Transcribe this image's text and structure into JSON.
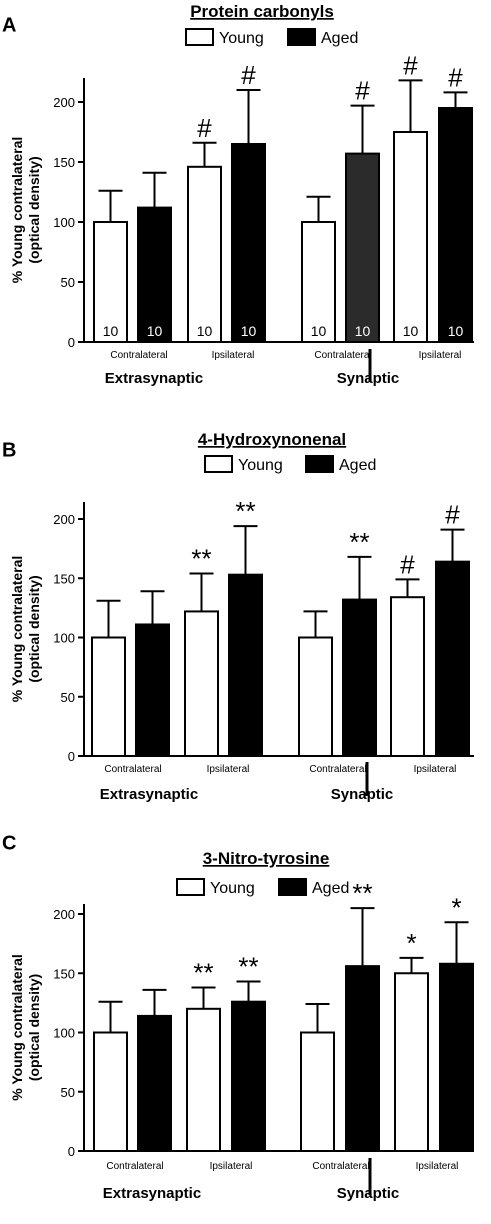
{
  "chart_data": [
    {
      "type": "bar",
      "panel": "A",
      "title": "Protein carbonyls",
      "ylabel": [
        "% Young contralateral",
        "(optical density)"
      ],
      "ylim": [
        0,
        230
      ],
      "yticks": [
        0,
        50,
        100,
        150,
        200
      ],
      "legend": [
        "Young",
        "Aged"
      ],
      "groups": [
        "Extrasynaptic",
        "Synaptic"
      ],
      "categories": [
        "Contralateral",
        "Ipsilateral"
      ],
      "bars": [
        {
          "group": "Extrasynaptic",
          "category": "Contralateral",
          "series": "Young",
          "value": 100,
          "error": 26,
          "sig": "",
          "n": "10"
        },
        {
          "group": "Extrasynaptic",
          "category": "Contralateral",
          "series": "Aged",
          "value": 112,
          "error": 29,
          "sig": "",
          "n": "10"
        },
        {
          "group": "Extrasynaptic",
          "category": "Ipsilateral",
          "series": "Young",
          "value": 146,
          "error": 20,
          "sig": "#",
          "n": "10"
        },
        {
          "group": "Extrasynaptic",
          "category": "Ipsilateral",
          "series": "Aged",
          "value": 165,
          "error": 45,
          "sig": "#",
          "n": "10"
        },
        {
          "group": "Synaptic",
          "category": "Contralateral",
          "series": "Young",
          "value": 100,
          "error": 21,
          "sig": "",
          "n": "10"
        },
        {
          "group": "Synaptic",
          "category": "Contralateral",
          "series": "Aged",
          "value": 157,
          "error": 40,
          "sig": "#",
          "n": "10",
          "color": "#2b2b2b"
        },
        {
          "group": "Synaptic",
          "category": "Ipsilateral",
          "series": "Young",
          "value": 175,
          "error": 43,
          "sig": "#",
          "n": "10"
        },
        {
          "group": "Synaptic",
          "category": "Ipsilateral",
          "series": "Aged",
          "value": 195,
          "error": 13,
          "sig": "#",
          "n": "10"
        }
      ]
    },
    {
      "type": "bar",
      "panel": "B",
      "title": "4-Hydroxynonenal",
      "ylabel": [
        "% Young contralateral",
        "(optical density)"
      ],
      "ylim": [
        0,
        230
      ],
      "yticks": [
        0,
        50,
        100,
        150,
        200
      ],
      "legend": [
        "Young",
        "Aged"
      ],
      "groups": [
        "Extrasynaptic",
        "Synaptic"
      ],
      "categories": [
        "Contralateral",
        "Ipsilateral"
      ],
      "bars": [
        {
          "group": "Extrasynaptic",
          "category": "Contralateral",
          "series": "Young",
          "value": 100,
          "error": 31,
          "sig": ""
        },
        {
          "group": "Extrasynaptic",
          "category": "Contralateral",
          "series": "Aged",
          "value": 111,
          "error": 28,
          "sig": ""
        },
        {
          "group": "Extrasynaptic",
          "category": "Ipsilateral",
          "series": "Young",
          "value": 122,
          "error": 32,
          "sig": "**"
        },
        {
          "group": "Extrasynaptic",
          "category": "Ipsilateral",
          "series": "Aged",
          "value": 153,
          "error": 41,
          "sig": "**"
        },
        {
          "group": "Synaptic",
          "category": "Contralateral",
          "series": "Young",
          "value": 100,
          "error": 22,
          "sig": ""
        },
        {
          "group": "Synaptic",
          "category": "Contralateral",
          "series": "Aged",
          "value": 132,
          "error": 36,
          "sig": "**"
        },
        {
          "group": "Synaptic",
          "category": "Ipsilateral",
          "series": "Young",
          "value": 134,
          "error": 15,
          "sig": "#"
        },
        {
          "group": "Synaptic",
          "category": "Ipsilateral",
          "series": "Aged",
          "value": 164,
          "error": 27,
          "sig": "#"
        }
      ]
    },
    {
      "type": "bar",
      "panel": "C",
      "title": "3-Nitro-tyrosine",
      "ylabel": [
        "% Young contralateral",
        "(optical density)"
      ],
      "ylim": [
        0,
        230
      ],
      "yticks": [
        0,
        50,
        100,
        150,
        200
      ],
      "legend": [
        "Young",
        "Aged"
      ],
      "groups": [
        "Extrasynaptic",
        "Synaptic"
      ],
      "categories": [
        "Contralateral",
        "Ipsilateral"
      ],
      "bars": [
        {
          "group": "Extrasynaptic",
          "category": "Contralateral",
          "series": "Young",
          "value": 100,
          "error": 26,
          "sig": ""
        },
        {
          "group": "Extrasynaptic",
          "category": "Contralateral",
          "series": "Aged",
          "value": 114,
          "error": 22,
          "sig": ""
        },
        {
          "group": "Extrasynaptic",
          "category": "Ipsilateral",
          "series": "Young",
          "value": 120,
          "error": 18,
          "sig": "**"
        },
        {
          "group": "Extrasynaptic",
          "category": "Ipsilateral",
          "series": "Aged",
          "value": 126,
          "error": 17,
          "sig": "**"
        },
        {
          "group": "Synaptic",
          "category": "Contralateral",
          "series": "Young",
          "value": 100,
          "error": 24,
          "sig": ""
        },
        {
          "group": "Synaptic",
          "category": "Contralateral",
          "series": "Aged",
          "value": 156,
          "error": 49,
          "sig": "**"
        },
        {
          "group": "Synaptic",
          "category": "Ipsilateral",
          "series": "Young",
          "value": 150,
          "error": 13,
          "sig": "*"
        },
        {
          "group": "Synaptic",
          "category": "Ipsilateral",
          "series": "Aged",
          "value": 158,
          "error": 35,
          "sig": "*"
        }
      ]
    }
  ],
  "colors": {
    "young": "#ffffff",
    "aged": "#000000",
    "axis": "#000000"
  }
}
